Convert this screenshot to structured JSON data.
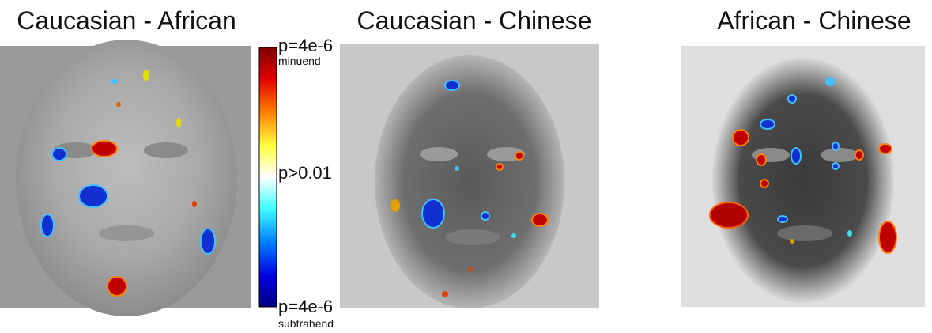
{
  "panels": [
    {
      "title": "Caucasian - African"
    },
    {
      "title": "Caucasian - Chinese"
    },
    {
      "title": "African - Chinese"
    }
  ],
  "colorbar": {
    "top_label": "p=4e-6",
    "top_note": "minuend",
    "middle_label": "p>0.01",
    "bottom_label": "p=4e-6",
    "bottom_note": "subtrahend"
  }
}
